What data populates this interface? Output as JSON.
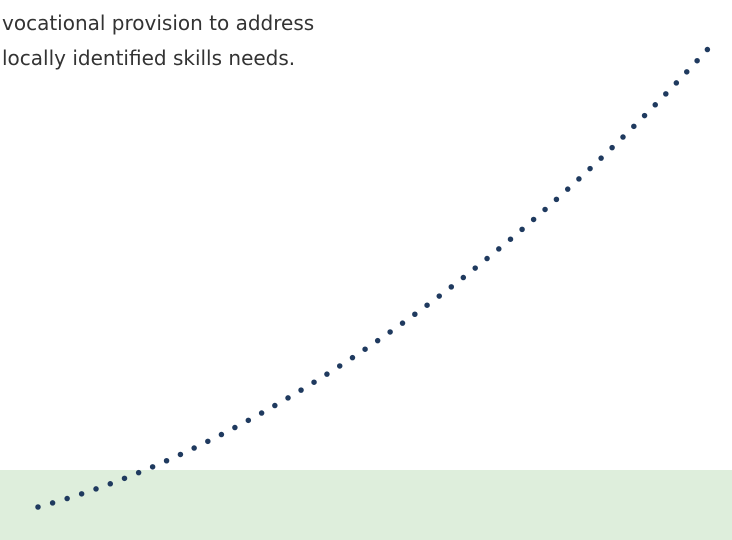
{
  "body": {
    "lines": [
      "vocational provision to address",
      "locally identified skills needs."
    ]
  }
}
